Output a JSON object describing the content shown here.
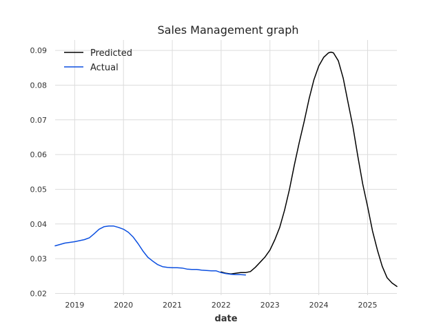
{
  "chart_data": {
    "type": "line",
    "title": "Sales Management graph",
    "xlabel": "date",
    "ylabel": "",
    "xlim": [
      2018.6,
      2025.6
    ],
    "ylim": [
      0.0195,
      0.093
    ],
    "x_ticks": [
      2019,
      2020,
      2021,
      2022,
      2023,
      2024,
      2025
    ],
    "x_tick_labels": [
      "2019",
      "2020",
      "2021",
      "2022",
      "2023",
      "2024",
      "2025"
    ],
    "y_ticks": [
      0.02,
      0.03,
      0.04,
      0.05,
      0.06,
      0.07,
      0.08,
      0.09
    ],
    "y_tick_labels": [
      "0.02",
      "0.03",
      "0.04",
      "0.05",
      "0.06",
      "0.07",
      "0.08",
      "0.09"
    ],
    "grid": true,
    "legend_position": "top-left",
    "series": [
      {
        "name": "Predicted",
        "color": "#000000",
        "x": [
          2022.0,
          2022.1,
          2022.2,
          2022.3,
          2022.4,
          2022.5,
          2022.6,
          2022.7,
          2022.8,
          2022.9,
          2023.0,
          2023.1,
          2023.2,
          2023.3,
          2023.4,
          2023.5,
          2023.6,
          2023.7,
          2023.8,
          2023.9,
          2024.0,
          2024.1,
          2024.2,
          2024.25,
          2024.3,
          2024.4,
          2024.5,
          2024.6,
          2024.7,
          2024.8,
          2024.9,
          2025.0,
          2025.1,
          2025.2,
          2025.3,
          2025.4,
          2025.5,
          2025.6
        ],
        "values": [
          0.0262,
          0.0258,
          0.0256,
          0.0258,
          0.026,
          0.026,
          0.0263,
          0.0275,
          0.029,
          0.0305,
          0.0325,
          0.0355,
          0.039,
          0.044,
          0.05,
          0.057,
          0.0635,
          0.0695,
          0.076,
          0.0815,
          0.0855,
          0.088,
          0.0893,
          0.0895,
          0.0893,
          0.087,
          0.082,
          0.075,
          0.068,
          0.0595,
          0.0515,
          0.045,
          0.038,
          0.0325,
          0.0278,
          0.0245,
          0.023,
          0.022
        ]
      },
      {
        "name": "Actual",
        "color": "#0b4fe0",
        "x": [
          2018.6,
          2018.7,
          2018.8,
          2018.9,
          2019.0,
          2019.1,
          2019.2,
          2019.3,
          2019.4,
          2019.5,
          2019.6,
          2019.7,
          2019.8,
          2019.9,
          2020.0,
          2020.1,
          2020.2,
          2020.3,
          2020.4,
          2020.5,
          2020.6,
          2020.7,
          2020.8,
          2020.9,
          2021.0,
          2021.1,
          2021.2,
          2021.3,
          2021.4,
          2021.5,
          2021.6,
          2021.7,
          2021.8,
          2021.9,
          2022.0,
          2022.1,
          2022.2,
          2022.3,
          2022.4,
          2022.5
        ],
        "values": [
          0.0337,
          0.0341,
          0.0345,
          0.0347,
          0.0349,
          0.0352,
          0.0355,
          0.036,
          0.0372,
          0.0385,
          0.0392,
          0.0394,
          0.0394,
          0.039,
          0.0385,
          0.0376,
          0.0362,
          0.0343,
          0.0322,
          0.0304,
          0.0293,
          0.0283,
          0.0277,
          0.0275,
          0.0274,
          0.0274,
          0.0273,
          0.027,
          0.0269,
          0.0269,
          0.0267,
          0.0266,
          0.0265,
          0.0265,
          0.026,
          0.0257,
          0.0255,
          0.0254,
          0.0254,
          0.0253
        ]
      }
    ]
  }
}
